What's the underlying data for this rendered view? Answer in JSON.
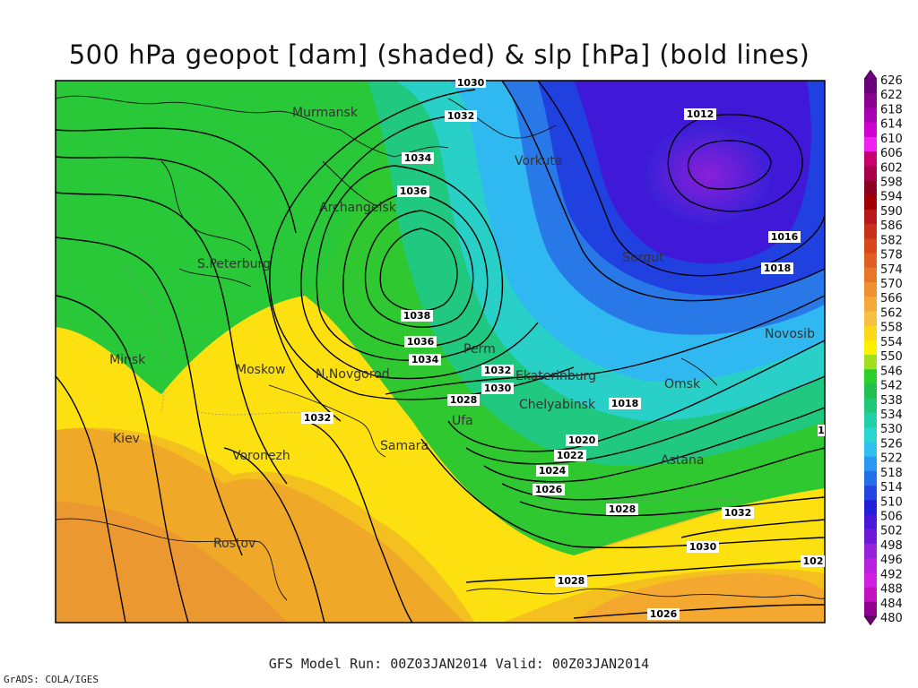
{
  "title": "500 hPa geopot [dam] (shaded) & slp [hPa] (bold lines)",
  "footer": "GFS Model Run: 00Z03JAN2014 Valid: 00Z03JAN2014",
  "credit": "GrADS: COLA/IGES",
  "cities": [
    {
      "name": "Murmansk"
    },
    {
      "name": "Vorkuta"
    },
    {
      "name": "Archangelsk"
    },
    {
      "name": "S.Peterburg"
    },
    {
      "name": "Surgut"
    },
    {
      "name": "Novosib"
    },
    {
      "name": "Minsk"
    },
    {
      "name": "Moskow"
    },
    {
      "name": "N.Novgorod"
    },
    {
      "name": "Perm"
    },
    {
      "name": "Ekaterinburg"
    },
    {
      "name": "Omsk"
    },
    {
      "name": "Chelyabinsk"
    },
    {
      "name": "Ufa"
    },
    {
      "name": "Kiev"
    },
    {
      "name": "Samara"
    },
    {
      "name": "Voronezh"
    },
    {
      "name": "Astana"
    },
    {
      "name": "Rostov"
    }
  ],
  "isobar_labels": [
    "1030",
    "1032",
    "1034",
    "1036",
    "1038",
    "1036",
    "1034",
    "1032",
    "1030",
    "1028",
    "1012",
    "1016",
    "1018",
    "1018",
    "1020",
    "1022",
    "1024",
    "1026",
    "1028",
    "1032",
    "1030",
    "1032",
    "1028",
    "1026",
    "102",
    "1"
  ],
  "colorbar": {
    "levels": [
      "626",
      "622",
      "618",
      "614",
      "610",
      "606",
      "602",
      "598",
      "594",
      "590",
      "586",
      "582",
      "578",
      "574",
      "570",
      "566",
      "562",
      "558",
      "554",
      "550",
      "546",
      "542",
      "538",
      "534",
      "530",
      "526",
      "522",
      "518",
      "514",
      "510",
      "506",
      "502",
      "498",
      "496",
      "492",
      "488",
      "484",
      "480"
    ],
    "colors": [
      "#6a007a",
      "#8a0090",
      "#a800b0",
      "#d000d0",
      "#f020f0",
      "#c8006e",
      "#a8004a",
      "#8c0020",
      "#a00000",
      "#b81818",
      "#c83018",
      "#d84818",
      "#e06020",
      "#e87828",
      "#f09030",
      "#f4a838",
      "#f8c040",
      "#fcd818",
      "#fcf000",
      "#a0e020",
      "#28d028",
      "#20c050",
      "#20c878",
      "#20d0a8",
      "#28d8d0",
      "#30c0f0",
      "#2898f0",
      "#2070e8",
      "#2048e0",
      "#2020d8",
      "#4818d8",
      "#7018d8",
      "#9820d8",
      "#b820e0",
      "#d020e0",
      "#c010c0",
      "#900090",
      "#680070"
    ]
  }
}
